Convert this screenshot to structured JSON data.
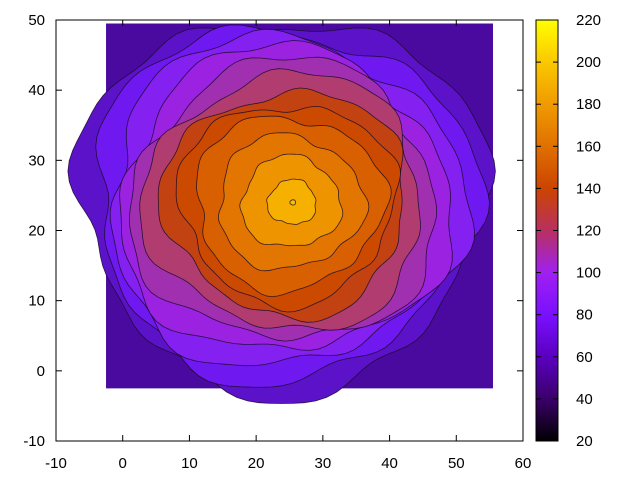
{
  "chart_data": {
    "type": "heatmap",
    "title": "",
    "xlabel": "",
    "ylabel": "",
    "xlim": [
      -10,
      60
    ],
    "ylim": [
      -10,
      50
    ],
    "x_ticks": [
      "-10",
      "0",
      "10",
      "20",
      "30",
      "40",
      "50",
      "60"
    ],
    "y_ticks": [
      "-10",
      "0",
      "10",
      "20",
      "30",
      "40",
      "50"
    ],
    "data_extent": {
      "x": [
        -2.5,
        55.5
      ],
      "y": [
        -2.5,
        49.5
      ]
    },
    "peak": {
      "x": 25.5,
      "y": 24,
      "value": 200
    },
    "background_value": 52,
    "contours": true,
    "colorbar": {
      "range": [
        20,
        220
      ],
      "ticks": [
        "20",
        "40",
        "60",
        "80",
        "100",
        "120",
        "140",
        "160",
        "180",
        "200",
        "220"
      ],
      "palette": [
        "#000000",
        "#3a006a",
        "#5a00c0",
        "#7a10ff",
        "#a020f0",
        "#b83060",
        "#cc4400",
        "#e07000",
        "#f09a00",
        "#fac800",
        "#ffff00"
      ]
    },
    "levels": [
      {
        "value": 62,
        "color": "#5c12c8"
      },
      {
        "value": 72,
        "color": "#6f18f0"
      },
      {
        "value": 82,
        "color": "#8420f0"
      },
      {
        "value": 92,
        "color": "#9a22e0"
      },
      {
        "value": 102,
        "color": "#a030b0"
      },
      {
        "value": 112,
        "color": "#b03c70"
      },
      {
        "value": 125,
        "color": "#c24212"
      },
      {
        "value": 135,
        "color": "#cc4a00"
      },
      {
        "value": 145,
        "color": "#d86000"
      },
      {
        "value": 160,
        "color": "#e27600"
      },
      {
        "value": 175,
        "color": "#ee9400"
      },
      {
        "value": 190,
        "color": "#f6b000"
      },
      {
        "value": 200,
        "color": "#f8c010"
      }
    ]
  }
}
